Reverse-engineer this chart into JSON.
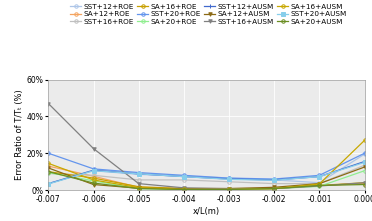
{
  "xlabel": "x/L(m)",
  "ylabel": "Error Ratio of T/Tₜ (%)",
  "xlim": [
    -0.007,
    0.0
  ],
  "ylim": [
    0,
    0.6
  ],
  "xticks": [
    -0.007,
    -0.006,
    -0.005,
    -0.004,
    -0.003,
    -0.002,
    -0.001,
    0.0
  ],
  "yticks": [
    0.0,
    0.2,
    0.4,
    0.6
  ],
  "ytick_labels": [
    "0%",
    "20%",
    "40%",
    "60%"
  ],
  "background_color": "#ebebeb",
  "series": [
    {
      "label": "SST+12+ROE",
      "color": "#aec6e8",
      "marker": "o",
      "markersize": 2.5,
      "linewidth": 0.9,
      "linestyle": "-",
      "x": [
        -0.007,
        -0.006,
        -0.005,
        -0.004,
        -0.003,
        -0.002,
        -0.001,
        0.0
      ],
      "y": [
        0.035,
        0.105,
        0.085,
        0.075,
        0.065,
        0.055,
        0.04,
        0.195
      ]
    },
    {
      "label": "SA+12+ROE",
      "color": "#f4a460",
      "marker": "o",
      "markersize": 2.5,
      "linewidth": 0.9,
      "linestyle": "-",
      "x": [
        -0.007,
        -0.006,
        -0.005,
        -0.004,
        -0.003,
        -0.002,
        -0.001,
        0.0
      ],
      "y": [
        0.13,
        0.075,
        0.015,
        0.008,
        0.008,
        0.008,
        0.025,
        0.035
      ]
    },
    {
      "label": "SST+16+ROE",
      "color": "#c0c0c0",
      "marker": "o",
      "markersize": 2.5,
      "linewidth": 0.9,
      "linestyle": "-",
      "x": [
        -0.007,
        -0.006,
        -0.005,
        -0.004,
        -0.003,
        -0.002,
        -0.001,
        0.0
      ],
      "y": [
        0.09,
        0.08,
        0.055,
        0.055,
        0.045,
        0.035,
        0.035,
        0.135
      ]
    },
    {
      "label": "SA+16+ROE",
      "color": "#c8a000",
      "marker": "o",
      "markersize": 2.5,
      "linewidth": 0.9,
      "linestyle": "-",
      "x": [
        -0.007,
        -0.006,
        -0.005,
        -0.004,
        -0.003,
        -0.002,
        -0.001,
        0.0
      ],
      "y": [
        0.1,
        0.065,
        0.018,
        0.008,
        0.008,
        0.008,
        0.025,
        0.04
      ]
    },
    {
      "label": "SST+20+ROE",
      "color": "#6495ed",
      "marker": "o",
      "markersize": 2.5,
      "linewidth": 0.9,
      "linestyle": "-",
      "x": [
        -0.007,
        -0.006,
        -0.005,
        -0.004,
        -0.003,
        -0.002,
        -0.001,
        0.0
      ],
      "y": [
        0.2,
        0.115,
        0.095,
        0.08,
        0.065,
        0.06,
        0.08,
        0.2
      ]
    },
    {
      "label": "SA+20+ROE",
      "color": "#90ee90",
      "marker": "o",
      "markersize": 2.5,
      "linewidth": 0.9,
      "linestyle": "-",
      "x": [
        -0.007,
        -0.006,
        -0.005,
        -0.004,
        -0.003,
        -0.002,
        -0.001,
        0.0
      ],
      "y": [
        0.095,
        0.05,
        0.008,
        0.003,
        0.003,
        0.008,
        0.02,
        0.105
      ]
    },
    {
      "label": "SST+12+AUSM",
      "color": "#4169cd",
      "marker": "+",
      "markersize": 3.5,
      "linewidth": 0.9,
      "linestyle": "-",
      "x": [
        -0.007,
        -0.006,
        -0.005,
        -0.004,
        -0.003,
        -0.002,
        -0.001,
        0.0
      ],
      "y": [
        0.035,
        0.108,
        0.088,
        0.073,
        0.06,
        0.055,
        0.073,
        0.155
      ]
    },
    {
      "label": "SA+12+AUSM",
      "color": "#8b6914",
      "marker": "v",
      "markersize": 2.5,
      "linewidth": 0.9,
      "linestyle": "-",
      "x": [
        -0.007,
        -0.006,
        -0.005,
        -0.004,
        -0.003,
        -0.002,
        -0.001,
        0.0
      ],
      "y": [
        0.12,
        0.03,
        0.01,
        0.007,
        0.008,
        0.015,
        0.035,
        0.125
      ]
    },
    {
      "label": "SST+16+AUSM",
      "color": "#808080",
      "marker": "v",
      "markersize": 2.5,
      "linewidth": 0.9,
      "linestyle": "-",
      "x": [
        -0.007,
        -0.006,
        -0.005,
        -0.004,
        -0.003,
        -0.002,
        -0.001,
        0.0
      ],
      "y": [
        0.47,
        0.225,
        0.035,
        0.012,
        0.008,
        0.008,
        0.022,
        0.04
      ]
    },
    {
      "label": "SA+16+AUSM",
      "color": "#c8a800",
      "marker": "o",
      "markersize": 2.5,
      "linewidth": 0.9,
      "linestyle": "-",
      "x": [
        -0.007,
        -0.006,
        -0.005,
        -0.004,
        -0.003,
        -0.002,
        -0.001,
        0.0
      ],
      "y": [
        0.145,
        0.055,
        0.013,
        0.004,
        0.004,
        0.008,
        0.033,
        0.27
      ]
    },
    {
      "label": "SST+20+AUSM",
      "color": "#87ceeb",
      "marker": "s",
      "markersize": 2.5,
      "linewidth": 0.9,
      "linestyle": "-",
      "x": [
        -0.007,
        -0.006,
        -0.005,
        -0.004,
        -0.003,
        -0.002,
        -0.001,
        0.0
      ],
      "y": [
        0.033,
        0.105,
        0.088,
        0.073,
        0.058,
        0.053,
        0.073,
        0.15
      ]
    },
    {
      "label": "SA+20+AUSM",
      "color": "#6b8e23",
      "marker": "o",
      "markersize": 2.5,
      "linewidth": 0.9,
      "linestyle": "-",
      "x": [
        -0.007,
        -0.006,
        -0.005,
        -0.004,
        -0.003,
        -0.002,
        -0.001,
        0.0
      ],
      "y": [
        0.1,
        0.038,
        0.008,
        0.003,
        0.003,
        0.008,
        0.025,
        0.03
      ]
    }
  ],
  "legend_ncol": 4,
  "legend_fontsize": 5.2,
  "axis_fontsize": 6,
  "tick_fontsize": 5.5
}
